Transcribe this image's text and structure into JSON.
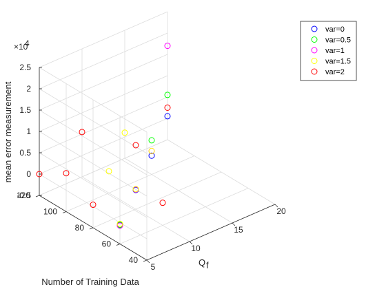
{
  "chart_data": {
    "type": "scatter",
    "subtype": "3d-scatter",
    "title": "",
    "xlabel": "Q",
    "xlabel_subscript": "f",
    "ylabel": "Number of Training Data",
    "zlabel": "mean error measurement",
    "z_exponent_label": "×10",
    "z_exponent_power": "4",
    "xlim": [
      5,
      20
    ],
    "ylim": [
      40,
      120
    ],
    "zlim": [
      -0.5,
      2.5
    ],
    "x_ticks": [
      "5",
      "10",
      "15",
      "20"
    ],
    "y_ticks": [
      "40",
      "60",
      "80",
      "100",
      "120"
    ],
    "z_ticks": [
      "-0.5",
      "0",
      "0.5",
      "1",
      "1.5",
      "2",
      "2.5"
    ],
    "x_tick_values": [
      5,
      10,
      15,
      20
    ],
    "y_tick_values": [
      40,
      60,
      80,
      100,
      120
    ],
    "z_tick_values": [
      -0.5,
      0,
      0.5,
      1,
      1.5,
      2,
      2.5
    ],
    "grid": true,
    "legend_position": "top-right",
    "series": [
      {
        "name": "var=0",
        "color": "#0000ff",
        "points": [
          {
            "x": 5,
            "y": 60,
            "z": -0.06
          },
          {
            "x": 10,
            "y": 80,
            "z": -0.05
          },
          {
            "x": 15,
            "y": 100,
            "z": -0.06
          },
          {
            "x": 20,
            "y": 120,
            "z": 0.05
          }
        ]
      },
      {
        "name": "var=0.5",
        "color": "#00ff00",
        "points": [
          {
            "x": 5,
            "y": 60,
            "z": -0.05
          },
          {
            "x": 10,
            "y": 80,
            "z": -0.04
          },
          {
            "x": 15,
            "y": 100,
            "z": 0.3
          },
          {
            "x": 20,
            "y": 120,
            "z": 0.55
          }
        ]
      },
      {
        "name": "var=1",
        "color": "#ff00ff",
        "points": [
          {
            "x": 5,
            "y": 60,
            "z": -0.07
          },
          {
            "x": 10,
            "y": 80,
            "z": -0.04
          },
          {
            "x": 15,
            "y": 100,
            "z": 0.05
          },
          {
            "x": 20,
            "y": 120,
            "z": 1.7
          }
        ]
      },
      {
        "name": "var=1.5",
        "color": "#ffff00",
        "points": [
          {
            "x": 5,
            "y": 60,
            "z": -0.03
          },
          {
            "x": 10,
            "y": 80,
            "z": -0.03
          },
          {
            "x": 10,
            "y": 100,
            "z": 0.01
          },
          {
            "x": 15,
            "y": 120,
            "z": 0.1
          },
          {
            "x": 15,
            "y": 100,
            "z": 0.05
          }
        ]
      },
      {
        "name": "var=2",
        "color": "#ff0000",
        "points": [
          {
            "x": 5,
            "y": 120,
            "z": 0
          },
          {
            "x": 5,
            "y": 80,
            "z": 0.04
          },
          {
            "x": 5,
            "y": 100,
            "z": 0.4
          },
          {
            "x": 10,
            "y": 60,
            "z": 0.03
          },
          {
            "x": 10,
            "y": 120,
            "z": 0.55
          },
          {
            "x": 10,
            "y": 80,
            "z": 1.0
          },
          {
            "x": 20,
            "y": 120,
            "z": 0.25
          }
        ]
      }
    ]
  }
}
